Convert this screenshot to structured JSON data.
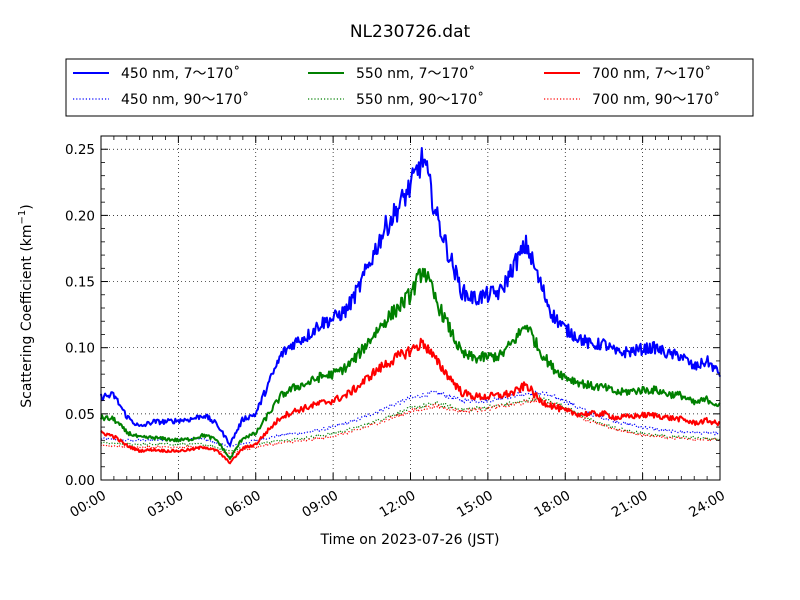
{
  "chart_data": {
    "type": "line",
    "title": "NL230726.dat",
    "xlabel": "Time on 2023-07-26 (JST)",
    "ylabel_main": "Scattering Coefficient (km",
    "ylabel_sup": "−1",
    "ylabel_close": ")",
    "xlim": [
      "00:00",
      "24:00"
    ],
    "ylim": [
      0.0,
      0.26
    ],
    "x_ticks": [
      "00:00",
      "03:00",
      "06:00",
      "09:00",
      "12:00",
      "15:00",
      "18:00",
      "21:00",
      "24:00"
    ],
    "y_ticks": [
      "0.00",
      "0.05",
      "0.10",
      "0.15",
      "0.20",
      "0.25"
    ],
    "grid": true,
    "legend_position": "top",
    "series": [
      {
        "name": "450 nm, 7～170˚",
        "color": "#0000ff",
        "style": "solid",
        "x": [
          "00:00",
          "00:30",
          "01:00",
          "01:30",
          "02:00",
          "02:30",
          "03:00",
          "03:30",
          "04:00",
          "04:30",
          "05:00",
          "05:30",
          "06:00",
          "06:30",
          "07:00",
          "07:30",
          "08:00",
          "08:30",
          "09:00",
          "09:30",
          "10:00",
          "10:30",
          "11:00",
          "11:30",
          "12:00",
          "12:30",
          "13:00",
          "13:30",
          "14:00",
          "14:30",
          "15:00",
          "15:30",
          "16:00",
          "16:30",
          "17:00",
          "17:30",
          "18:00",
          "18:30",
          "19:00",
          "19:30",
          "20:00",
          "20:30",
          "21:00",
          "21:30",
          "22:00",
          "22:30",
          "23:00",
          "23:30",
          "24:00"
        ],
        "y": [
          0.063,
          0.064,
          0.048,
          0.04,
          0.044,
          0.044,
          0.045,
          0.046,
          0.049,
          0.042,
          0.027,
          0.046,
          0.05,
          0.073,
          0.095,
          0.104,
          0.109,
          0.118,
          0.122,
          0.128,
          0.145,
          0.168,
          0.19,
          0.205,
          0.222,
          0.244,
          0.2,
          0.17,
          0.142,
          0.137,
          0.14,
          0.142,
          0.162,
          0.178,
          0.15,
          0.125,
          0.114,
          0.108,
          0.102,
          0.103,
          0.096,
          0.097,
          0.099,
          0.1,
          0.095,
          0.094,
          0.085,
          0.09,
          0.08
        ]
      },
      {
        "name": "550 nm, 7～170˚",
        "color": "#008000",
        "style": "solid",
        "x": [
          "00:00",
          "00:30",
          "01:00",
          "01:30",
          "02:00",
          "02:30",
          "03:00",
          "03:30",
          "04:00",
          "04:30",
          "05:00",
          "05:30",
          "06:00",
          "06:30",
          "07:00",
          "07:30",
          "08:00",
          "08:30",
          "09:00",
          "09:30",
          "10:00",
          "10:30",
          "11:00",
          "11:30",
          "12:00",
          "12:30",
          "13:00",
          "13:30",
          "14:00",
          "14:30",
          "15:00",
          "15:30",
          "16:00",
          "16:30",
          "17:00",
          "17:30",
          "18:00",
          "18:30",
          "19:00",
          "19:30",
          "20:00",
          "20:30",
          "21:00",
          "21:30",
          "22:00",
          "22:30",
          "23:00",
          "23:30",
          "24:00"
        ],
        "y": [
          0.047,
          0.046,
          0.036,
          0.032,
          0.032,
          0.031,
          0.03,
          0.031,
          0.034,
          0.03,
          0.016,
          0.032,
          0.035,
          0.05,
          0.064,
          0.07,
          0.073,
          0.078,
          0.08,
          0.085,
          0.095,
          0.108,
          0.12,
          0.13,
          0.14,
          0.16,
          0.135,
          0.115,
          0.095,
          0.092,
          0.093,
          0.094,
          0.105,
          0.118,
          0.098,
          0.085,
          0.078,
          0.074,
          0.071,
          0.07,
          0.066,
          0.067,
          0.068,
          0.068,
          0.065,
          0.064,
          0.058,
          0.061,
          0.056
        ]
      },
      {
        "name": "700 nm, 7～170˚",
        "color": "#ff0000",
        "style": "solid",
        "x": [
          "00:00",
          "00:30",
          "01:00",
          "01:30",
          "02:00",
          "02:30",
          "03:00",
          "03:30",
          "04:00",
          "04:30",
          "05:00",
          "05:30",
          "06:00",
          "06:30",
          "07:00",
          "07:30",
          "08:00",
          "08:30",
          "09:00",
          "09:30",
          "10:00",
          "10:30",
          "11:00",
          "11:30",
          "12:00",
          "12:30",
          "13:00",
          "13:30",
          "14:00",
          "14:30",
          "15:00",
          "15:30",
          "16:00",
          "16:30",
          "17:00",
          "17:30",
          "18:00",
          "18:30",
          "19:00",
          "19:30",
          "20:00",
          "20:30",
          "21:00",
          "21:30",
          "22:00",
          "22:30",
          "23:00",
          "23:30",
          "24:00"
        ],
        "y": [
          0.036,
          0.033,
          0.026,
          0.022,
          0.023,
          0.022,
          0.022,
          0.023,
          0.025,
          0.022,
          0.013,
          0.024,
          0.027,
          0.038,
          0.048,
          0.052,
          0.055,
          0.058,
          0.06,
          0.064,
          0.071,
          0.08,
          0.087,
          0.093,
          0.098,
          0.104,
          0.09,
          0.078,
          0.066,
          0.063,
          0.063,
          0.064,
          0.066,
          0.072,
          0.06,
          0.056,
          0.052,
          0.05,
          0.05,
          0.05,
          0.047,
          0.048,
          0.049,
          0.049,
          0.047,
          0.046,
          0.043,
          0.045,
          0.042
        ]
      },
      {
        "name": "450 nm, 90～170˚",
        "color": "#0000ff",
        "style": "dotted",
        "x": [
          "00:00",
          "01:00",
          "02:00",
          "03:00",
          "04:00",
          "05:00",
          "06:00",
          "07:00",
          "08:00",
          "09:00",
          "10:00",
          "11:00",
          "12:00",
          "13:00",
          "14:00",
          "15:00",
          "16:00",
          "17:00",
          "18:00",
          "19:00",
          "20:00",
          "21:00",
          "22:00",
          "23:00",
          "24:00"
        ],
        "y": [
          0.031,
          0.03,
          0.03,
          0.031,
          0.031,
          0.025,
          0.03,
          0.034,
          0.036,
          0.04,
          0.046,
          0.054,
          0.062,
          0.066,
          0.06,
          0.06,
          0.064,
          0.066,
          0.06,
          0.05,
          0.044,
          0.04,
          0.037,
          0.036,
          0.035
        ]
      },
      {
        "name": "550 nm, 90～170˚",
        "color": "#008000",
        "style": "dotted",
        "x": [
          "00:00",
          "01:00",
          "02:00",
          "03:00",
          "04:00",
          "05:00",
          "06:00",
          "07:00",
          "08:00",
          "09:00",
          "10:00",
          "11:00",
          "12:00",
          "13:00",
          "14:00",
          "15:00",
          "16:00",
          "17:00",
          "18:00",
          "19:00",
          "20:00",
          "21:00",
          "22:00",
          "23:00",
          "24:00"
        ],
        "y": [
          0.028,
          0.027,
          0.027,
          0.027,
          0.027,
          0.022,
          0.027,
          0.03,
          0.032,
          0.035,
          0.04,
          0.047,
          0.054,
          0.058,
          0.053,
          0.055,
          0.058,
          0.062,
          0.055,
          0.045,
          0.039,
          0.035,
          0.033,
          0.032,
          0.031
        ]
      },
      {
        "name": "700 nm, 90～170˚",
        "color": "#ff0000",
        "style": "dotted",
        "x": [
          "00:00",
          "01:00",
          "02:00",
          "03:00",
          "04:00",
          "05:00",
          "06:00",
          "07:00",
          "08:00",
          "09:00",
          "10:00",
          "11:00",
          "12:00",
          "13:00",
          "14:00",
          "15:00",
          "16:00",
          "17:00",
          "18:00",
          "19:00",
          "20:00",
          "21:00",
          "22:00",
          "23:00",
          "24:00"
        ],
        "y": [
          0.026,
          0.025,
          0.025,
          0.025,
          0.025,
          0.02,
          0.025,
          0.028,
          0.03,
          0.033,
          0.038,
          0.045,
          0.052,
          0.056,
          0.052,
          0.054,
          0.057,
          0.061,
          0.054,
          0.044,
          0.038,
          0.034,
          0.032,
          0.031,
          0.03
        ]
      }
    ]
  }
}
